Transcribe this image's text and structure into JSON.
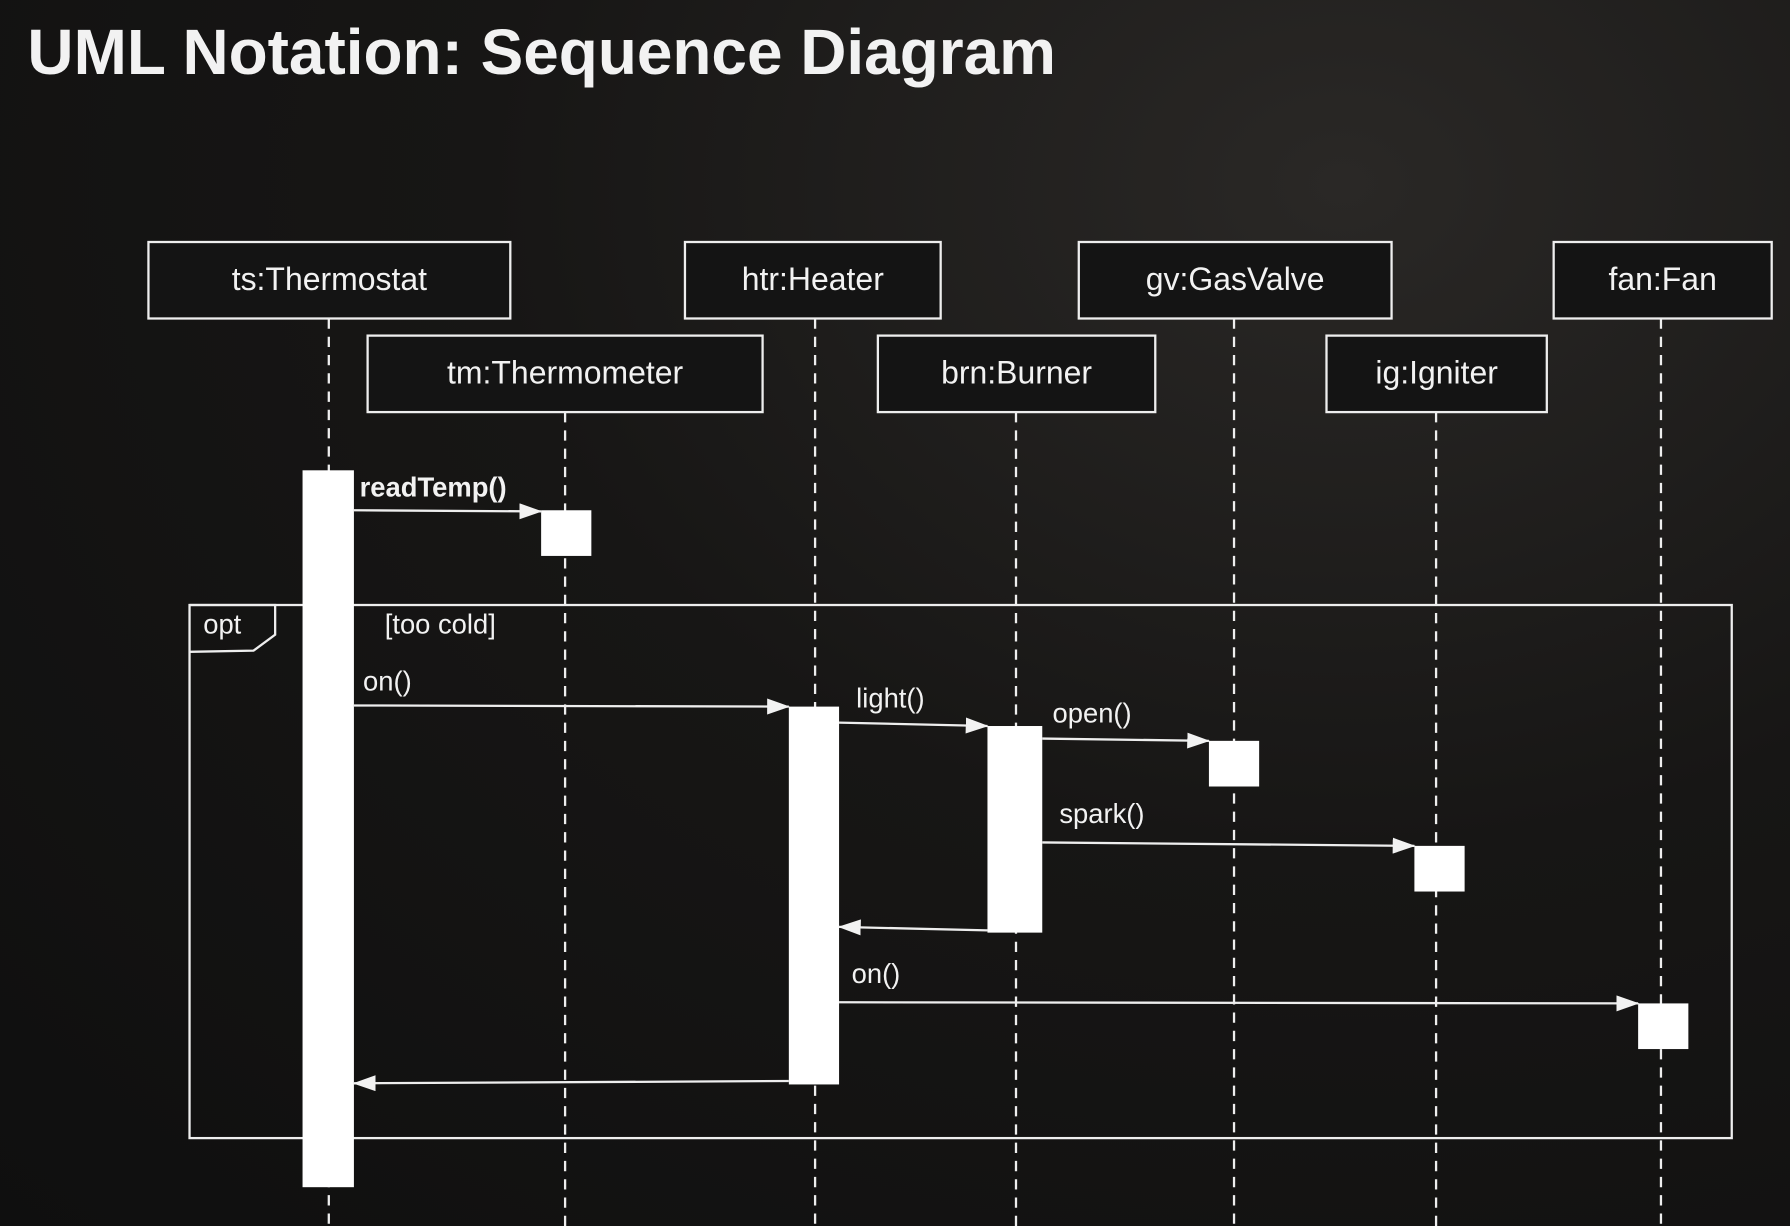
{
  "title": "UML Notation: Sequence Diagram",
  "colors": {
    "background": "#121212",
    "foreground": "#ffffff"
  },
  "lifelines": [
    {
      "id": "ts",
      "label": "ts:Thermostat"
    },
    {
      "id": "tm",
      "label": "tm:Thermometer"
    },
    {
      "id": "htr",
      "label": "htr:Heater"
    },
    {
      "id": "brn",
      "label": "brn:Burner"
    },
    {
      "id": "gv",
      "label": "gv:GasValve"
    },
    {
      "id": "ig",
      "label": "ig:Igniter"
    },
    {
      "id": "fan",
      "label": "fan:Fan"
    }
  ],
  "fragment": {
    "operator": "opt",
    "guard": "[too cold]"
  },
  "messages": [
    {
      "from": "ts",
      "to": "tm",
      "label": "readTemp()",
      "type": "call"
    },
    {
      "from": "ts",
      "to": "htr",
      "label": "on()",
      "type": "call"
    },
    {
      "from": "htr",
      "to": "brn",
      "label": "light()",
      "type": "call"
    },
    {
      "from": "brn",
      "to": "gv",
      "label": "open()",
      "type": "call"
    },
    {
      "from": "brn",
      "to": "ig",
      "label": "spark()",
      "type": "call"
    },
    {
      "from": "brn",
      "to": "htr",
      "label": "",
      "type": "return"
    },
    {
      "from": "htr",
      "to": "fan",
      "label": "on()",
      "type": "call"
    },
    {
      "from": "htr",
      "to": "ts",
      "label": "",
      "type": "return"
    }
  ]
}
